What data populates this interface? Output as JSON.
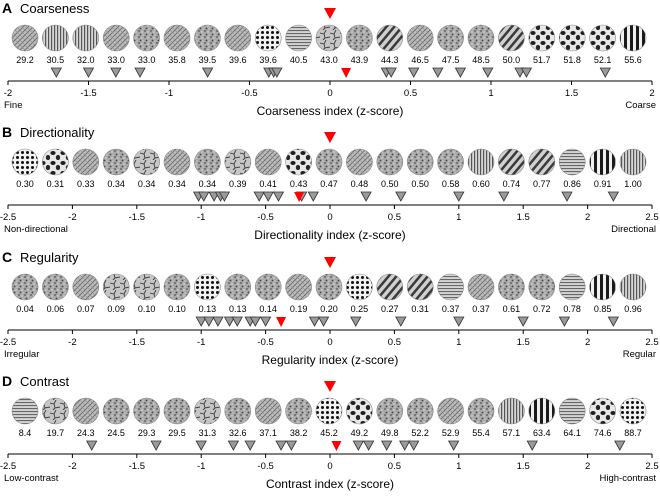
{
  "figure": {
    "panels": [
      {
        "id": "coarseness",
        "letter": "A",
        "title": "Coarseness",
        "thumb_labels": [
          "29.2",
          "30.5",
          "32.0",
          "33.0",
          "33.0",
          "35.8",
          "39.5",
          "39.6",
          "39.6",
          "40.5",
          "43.0",
          "43.9",
          "44.3",
          "46.5",
          "47.5",
          "48.5",
          "50.0",
          "51.7",
          "51.8",
          "52.1",
          "55.6"
        ],
        "thumb_styles": [
          "hatch",
          "vlines",
          "vlines",
          "hatch",
          "grain",
          "hatch",
          "grain",
          "hatch",
          "dots",
          "hlines",
          "cracks",
          "grain",
          "diag",
          "hatch",
          "grain",
          "grain",
          "diag",
          "blobs",
          "blobs",
          "blobs",
          "vbars"
        ],
        "axis_range": [
          -2,
          2
        ],
        "ticks": [
          -2,
          -1.5,
          -1,
          -0.5,
          0,
          0.5,
          1,
          1.5,
          2
        ],
        "tick_labels": [
          "-2",
          "-1.5",
          "-1",
          "-0.5",
          "0",
          "0.5",
          "1",
          "1.5",
          "2"
        ],
        "marker_z": [
          -1.7,
          -1.5,
          -1.33,
          -1.18,
          -0.76,
          -0.38,
          -0.35,
          -0.33,
          0.35,
          0.38,
          0.52,
          0.67,
          0.81,
          0.98,
          1.18,
          1.22,
          1.71
        ],
        "target_z": 0.1,
        "reference_z": 0.0,
        "left_label": "Fine",
        "right_label": "Coarse",
        "axis_title": "Coarseness index (z-score)"
      },
      {
        "id": "directionality",
        "letter": "B",
        "title": "Directionality",
        "thumb_labels": [
          "0.30",
          "0.31",
          "0.33",
          "0.34",
          "0.34",
          "0.34",
          "0.34",
          "0.39",
          "0.41",
          "0.43",
          "0.47",
          "0.48",
          "0.50",
          "0.50",
          "0.58",
          "0.60",
          "0.74",
          "0.77",
          "0.86",
          "0.91",
          "1.00"
        ],
        "thumb_styles": [
          "dots",
          "blobs",
          "hatch",
          "grain",
          "cracks",
          "hatch",
          "grain",
          "cracks",
          "hatch",
          "blobs",
          "grain",
          "hatch",
          "grain",
          "grain",
          "grain",
          "vlines",
          "diag",
          "diag",
          "hlines",
          "vbars",
          "vlines"
        ],
        "axis_range": [
          -2.5,
          2.5
        ],
        "ticks": [
          -2.5,
          -2,
          -1.5,
          -1,
          -0.5,
          0,
          0.5,
          1,
          1.5,
          2,
          2.5
        ],
        "tick_labels": [
          "-2.5",
          "-2",
          "-1.5",
          "-1",
          "-0.5",
          "0",
          "0.5",
          "1",
          "1.5",
          "2",
          "2.5"
        ],
        "marker_z": [
          -1.02,
          -0.98,
          -0.9,
          -0.85,
          -0.82,
          -0.55,
          -0.48,
          -0.4,
          -0.22,
          -0.13,
          0.28,
          0.55,
          1.0,
          1.35,
          1.84,
          2.2
        ],
        "target_z": -0.24,
        "reference_z": 0.0,
        "left_label": "Non-directional",
        "right_label": "Directional",
        "axis_title": "Directionality index (z-score)"
      },
      {
        "id": "regularity",
        "letter": "C",
        "title": "Regularity",
        "thumb_labels": [
          "0.04",
          "0.06",
          "0.07",
          "0.09",
          "0.10",
          "0.10",
          "0.13",
          "0.13",
          "0.14",
          "0.19",
          "0.20",
          "0.25",
          "0.27",
          "0.31",
          "0.37",
          "0.37",
          "0.61",
          "0.72",
          "0.78",
          "0.85",
          "0.96"
        ],
        "thumb_styles": [
          "grain",
          "grain",
          "hatch",
          "cracks",
          "cracks",
          "grain",
          "dots",
          "grain",
          "grain",
          "hatch",
          "grain",
          "dots",
          "diag",
          "diag",
          "hlines",
          "hatch",
          "grain",
          "grain",
          "hlines",
          "vbars",
          "vlines"
        ],
        "axis_range": [
          -2.5,
          2.5
        ],
        "ticks": [
          -2.5,
          -2,
          -1.5,
          -1,
          -0.5,
          0,
          0.5,
          1,
          1.5,
          2,
          2.5
        ],
        "tick_labels": [
          "-2.5",
          "-2",
          "-1.5",
          "-1",
          "-0.5",
          "0",
          "0.5",
          "1",
          "1.5",
          "2",
          "2.5"
        ],
        "marker_z": [
          -1.0,
          -0.94,
          -0.87,
          -0.78,
          -0.72,
          -0.62,
          -0.58,
          -0.5,
          -0.12,
          -0.05,
          0.2,
          0.55,
          1.0,
          1.5,
          1.82,
          2.2
        ],
        "target_z": -0.38,
        "reference_z": 0.0,
        "left_label": "Irregular",
        "right_label": "Regular",
        "axis_title": "Regularity index (z-score)"
      },
      {
        "id": "contrast",
        "letter": "D",
        "title": "Contrast",
        "thumb_labels": [
          "8.4",
          "19.7",
          "24.3",
          "24.5",
          "29.3",
          "29.5",
          "31.3",
          "32.6",
          "37.1",
          "38.2",
          "45.2",
          "49.2",
          "49.8",
          "52.2",
          "52.9",
          "55.4",
          "57.1",
          "63.4",
          "64.1",
          "74.6",
          "88.7"
        ],
        "thumb_styles": [
          "hlines",
          "cracks",
          "hatch",
          "grain",
          "grain",
          "grain",
          "cracks",
          "grain",
          "hatch",
          "grain",
          "dots",
          "blobs",
          "grain",
          "grain",
          "hatch",
          "grain",
          "vlines",
          "vbars",
          "hlines",
          "blobs",
          "dots"
        ],
        "axis_range": [
          -2.5,
          2.5
        ],
        "ticks": [
          -2.5,
          -2,
          -1.5,
          -1,
          -0.5,
          0,
          0.5,
          1,
          1.5,
          2,
          2.5
        ],
        "tick_labels": [
          "-2.5",
          "-2",
          "-1.5",
          "-1",
          "-0.5",
          "0",
          "0.5",
          "1",
          "1.5",
          "2",
          "2.5"
        ],
        "marker_z": [
          -1.85,
          -1.35,
          -1.0,
          -0.75,
          -0.62,
          -0.38,
          -0.3,
          0.22,
          0.3,
          0.44,
          0.58,
          0.65,
          0.96,
          1.57,
          2.25
        ],
        "target_z": 0.05,
        "reference_z": 0.0,
        "left_label": "Low-contrast",
        "right_label": "High-contrast",
        "axis_title": "Contrast index (z-score)"
      }
    ],
    "colors": {
      "marker_fill": "#9a9a9a",
      "marker_stroke": "#333333",
      "target": "#ff0000",
      "axis": "#000000"
    }
  }
}
